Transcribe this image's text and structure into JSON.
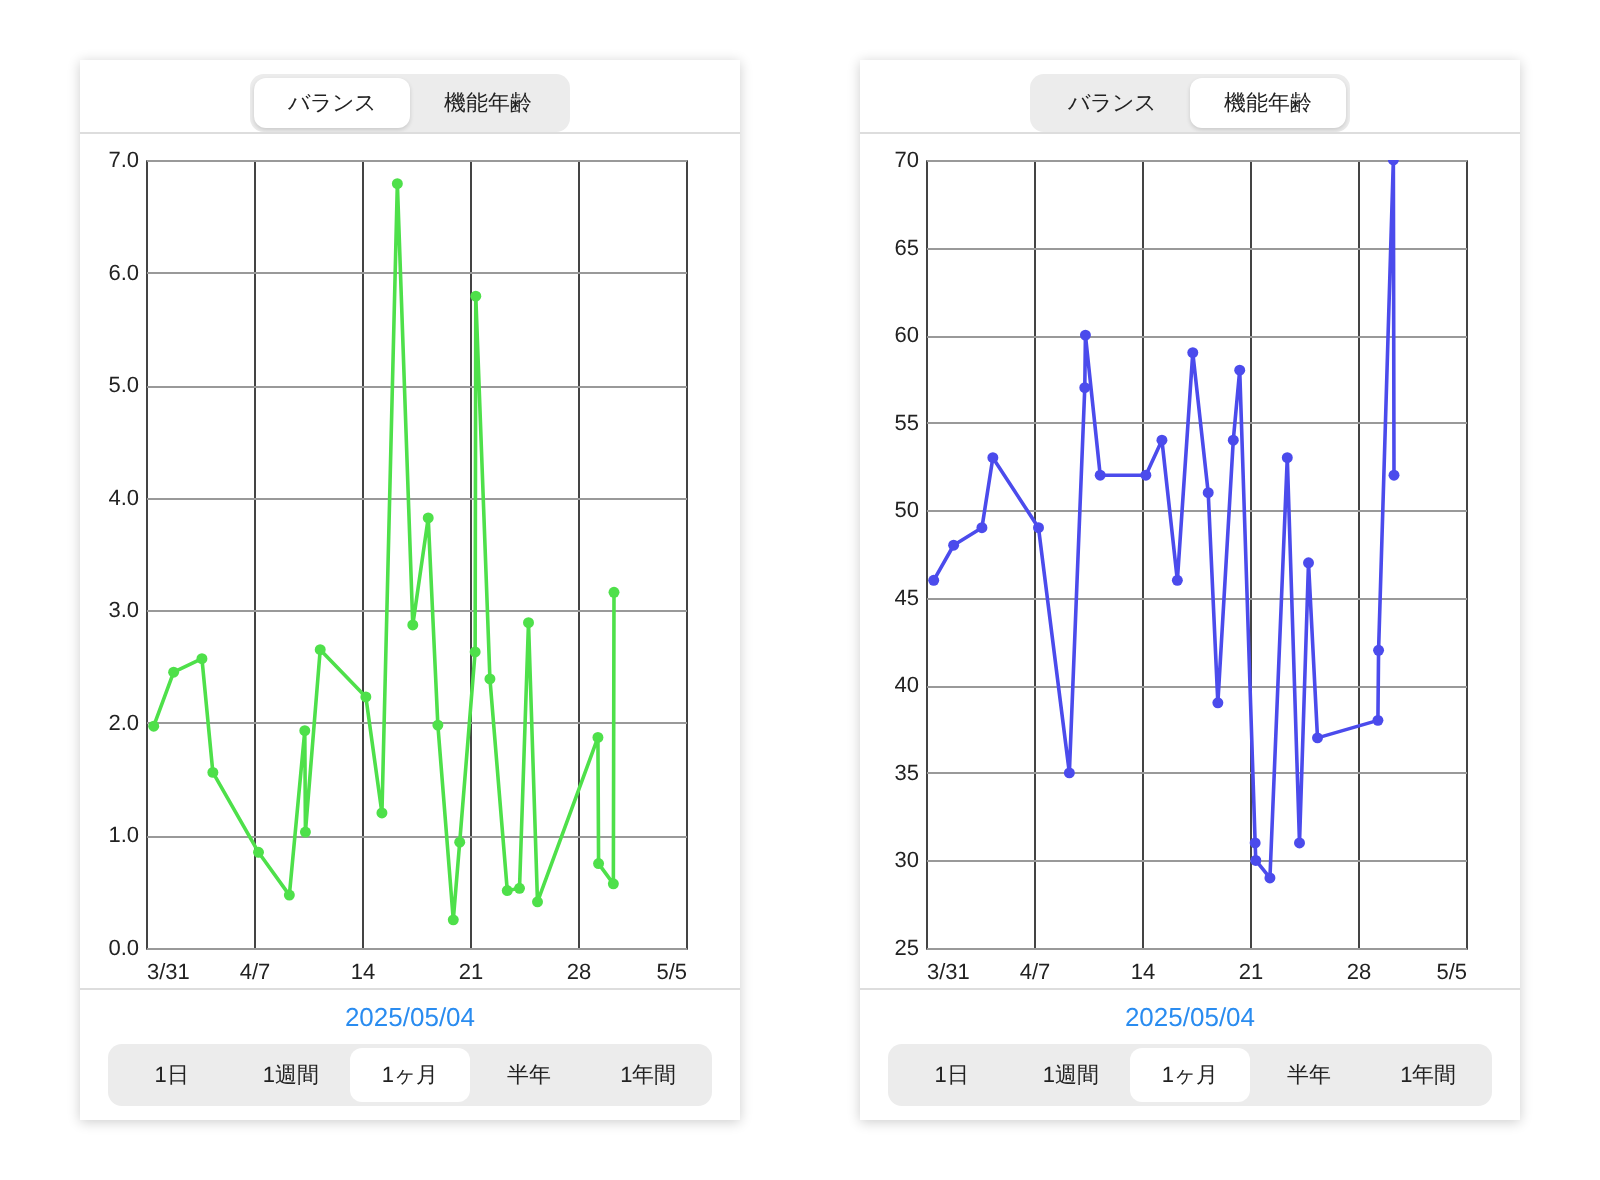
{
  "chart_data": [
    {
      "type": "line",
      "series": [
        {
          "color": "#4ee04a",
          "x": [
            "2025-03-31T12:00",
            "2025-04-01T19:00",
            "2025-04-03T15:00",
            "2025-04-04T08:00",
            "2025-04-07T07:00",
            "2025-04-09T07:00",
            "2025-04-10T07:00",
            "2025-04-10T08:00",
            "2025-04-11T07:00",
            "2025-04-14T06:00",
            "2025-04-15T07:00",
            "2025-04-16T07:00",
            "2025-04-17T07:00",
            "2025-04-18T07:00",
            "2025-04-18T22:00",
            "2025-04-19T22:00",
            "2025-04-20T08:00",
            "2025-04-21T08:00",
            "2025-04-21T09:00",
            "2025-04-22T07:00",
            "2025-04-23T10:00",
            "2025-04-24T05:00",
            "2025-04-24T19:00",
            "2025-04-25T09:00",
            "2025-04-29T07:00",
            "2025-04-29T08:00",
            "2025-04-30T07:00",
            "2025-04-30T08:00"
          ],
          "values": [
            1.97,
            2.45,
            2.57,
            1.56,
            0.85,
            0.47,
            1.93,
            1.03,
            2.65,
            2.23,
            1.2,
            6.79,
            2.87,
            3.82,
            1.98,
            0.25,
            0.94,
            2.63,
            5.79,
            2.39,
            0.51,
            0.53,
            2.89,
            0.41,
            1.87,
            0.75,
            0.57,
            3.16
          ]
        }
      ],
      "xlim": [
        "2025-03-31",
        "2025-05-05"
      ],
      "xticks": [
        {
          "value": "2025-03-31",
          "label": "3/31"
        },
        {
          "value": "2025-04-07",
          "label": "4/7"
        },
        {
          "value": "2025-04-14",
          "label": "14"
        },
        {
          "value": "2025-04-21",
          "label": "21"
        },
        {
          "value": "2025-04-28",
          "label": "28"
        },
        {
          "value": "2025-05-05",
          "label": "5/5"
        }
      ],
      "ylim": [
        0,
        7
      ],
      "yticks": [
        {
          "value": 0,
          "label": "0.0"
        },
        {
          "value": 1,
          "label": "1.0"
        },
        {
          "value": 2,
          "label": "2.0"
        },
        {
          "value": 3,
          "label": "3.0"
        },
        {
          "value": 4,
          "label": "4.0"
        },
        {
          "value": 5,
          "label": "5.0"
        },
        {
          "value": 6,
          "label": "6.0"
        },
        {
          "value": 7,
          "label": "7.0"
        }
      ],
      "grid": true,
      "marker": "circle",
      "annotations": [
        "バランス",
        "機能年齢",
        "2025/05/04",
        "1日",
        "1週間",
        "1ヶ月",
        "半年",
        "1年間"
      ]
    },
    {
      "type": "line",
      "series": [
        {
          "color": "#4b4bec",
          "x": [
            "2025-03-31T12:00",
            "2025-04-01T19:00",
            "2025-04-03T15:00",
            "2025-04-04T08:00",
            "2025-04-07T07:00",
            "2025-04-09T07:00",
            "2025-04-10T07:00",
            "2025-04-10T08:00",
            "2025-04-11T07:00",
            "2025-04-14T06:00",
            "2025-04-15T07:00",
            "2025-04-16T07:00",
            "2025-04-17T07:00",
            "2025-04-18T07:00",
            "2025-04-18T22:00",
            "2025-04-19T22:00",
            "2025-04-20T08:00",
            "2025-04-21T08:00",
            "2025-04-21T09:00",
            "2025-04-22T07:00",
            "2025-04-23T10:00",
            "2025-04-24T05:00",
            "2025-04-24T19:00",
            "2025-04-25T09:00",
            "2025-04-29T07:00",
            "2025-04-29T08:00",
            "2025-04-30T07:00",
            "2025-04-30T08:00"
          ],
          "values": [
            46,
            48,
            49,
            53,
            49,
            35,
            57,
            60,
            52,
            52,
            54,
            46,
            59,
            51,
            39,
            54,
            58,
            31,
            30,
            29,
            53,
            31,
            47,
            37,
            38,
            42,
            70,
            52
          ]
        }
      ],
      "xlim": [
        "2025-03-31",
        "2025-05-05"
      ],
      "xticks": [
        {
          "value": "2025-03-31",
          "label": "3/31"
        },
        {
          "value": "2025-04-07",
          "label": "4/7"
        },
        {
          "value": "2025-04-14",
          "label": "14"
        },
        {
          "value": "2025-04-21",
          "label": "21"
        },
        {
          "value": "2025-04-28",
          "label": "28"
        },
        {
          "value": "2025-05-05",
          "label": "5/5"
        }
      ],
      "ylim": [
        25,
        70
      ],
      "yticks": [
        25,
        30,
        35,
        40,
        45,
        50,
        55,
        60,
        65,
        70
      ],
      "grid": true,
      "marker": "circle",
      "annotations": [
        "バランス",
        "機能年齢",
        "2025/05/04",
        "1日",
        "1週間",
        "1ヶ月",
        "半年",
        "1年間"
      ]
    }
  ]
}
